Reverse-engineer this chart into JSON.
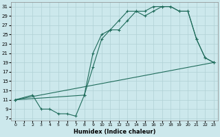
{
  "xlabel": "Humidex (Indice chaleur)",
  "bg_color": "#cce8ec",
  "grid_color": "#b0d0d4",
  "line_color": "#1e6b5a",
  "xlim": [
    -0.5,
    23.5
  ],
  "ylim": [
    6.5,
    32
  ],
  "xticks": [
    0,
    1,
    2,
    3,
    4,
    5,
    6,
    7,
    8,
    9,
    10,
    11,
    12,
    13,
    14,
    15,
    16,
    17,
    18,
    19,
    20,
    21,
    22,
    23
  ],
  "yticks": [
    7,
    9,
    11,
    13,
    15,
    17,
    19,
    21,
    23,
    25,
    27,
    29,
    31
  ],
  "line1_x": [
    0,
    2,
    3,
    4,
    5,
    6,
    7,
    8,
    9,
    10,
    11,
    12,
    13,
    14,
    15,
    16,
    17,
    18,
    19,
    20,
    21,
    22,
    23
  ],
  "line1_y": [
    11,
    12,
    9,
    9,
    8,
    8,
    7.5,
    12,
    18,
    24,
    26,
    26,
    28,
    30,
    29,
    30,
    31,
    31,
    30,
    30,
    24,
    20,
    19
  ],
  "line2_x": [
    0,
    8,
    9,
    10,
    11,
    12,
    13,
    14,
    15,
    16,
    17,
    18,
    19,
    20,
    21,
    22,
    23
  ],
  "line2_y": [
    11,
    12,
    21,
    25,
    26,
    28,
    30,
    30,
    30,
    31,
    31,
    31,
    30,
    30,
    24,
    20,
    19
  ],
  "line3_x": [
    0,
    23
  ],
  "line3_y": [
    11,
    19
  ]
}
